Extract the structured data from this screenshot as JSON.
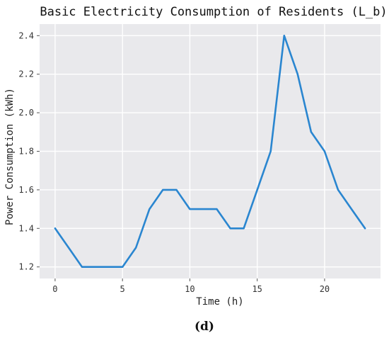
{
  "chart_data": {
    "type": "line",
    "title": "Basic Electricity Consumption of Residents (L_b)",
    "xlabel": "Time (h)",
    "ylabel": "Power Consumption (kWh)",
    "xlim": [
      -1.15,
      24.15
    ],
    "ylim": [
      1.14,
      2.46
    ],
    "xticks": [
      0,
      5,
      10,
      15,
      20
    ],
    "yticks": [
      1.2,
      1.4,
      1.6,
      1.8,
      2.0,
      2.2,
      2.4
    ],
    "grid": true,
    "background": "#e9e9ec",
    "gridColor": "#ffffff",
    "lineColor": "#2a86d0",
    "series": [
      {
        "x": [
          0,
          1,
          2,
          3,
          4,
          5,
          6,
          7,
          8,
          9,
          10,
          11,
          12,
          13,
          14,
          15,
          16,
          17,
          18,
          19,
          20,
          21,
          22,
          23
        ],
        "values": [
          1.4,
          1.3,
          1.2,
          1.2,
          1.2,
          1.2,
          1.3,
          1.5,
          1.6,
          1.6,
          1.5,
          1.5,
          1.5,
          1.4,
          1.4,
          1.6,
          1.8,
          2.4,
          2.2,
          1.9,
          1.8,
          1.6,
          1.5,
          1.4
        ]
      }
    ]
  },
  "caption": "(d)"
}
